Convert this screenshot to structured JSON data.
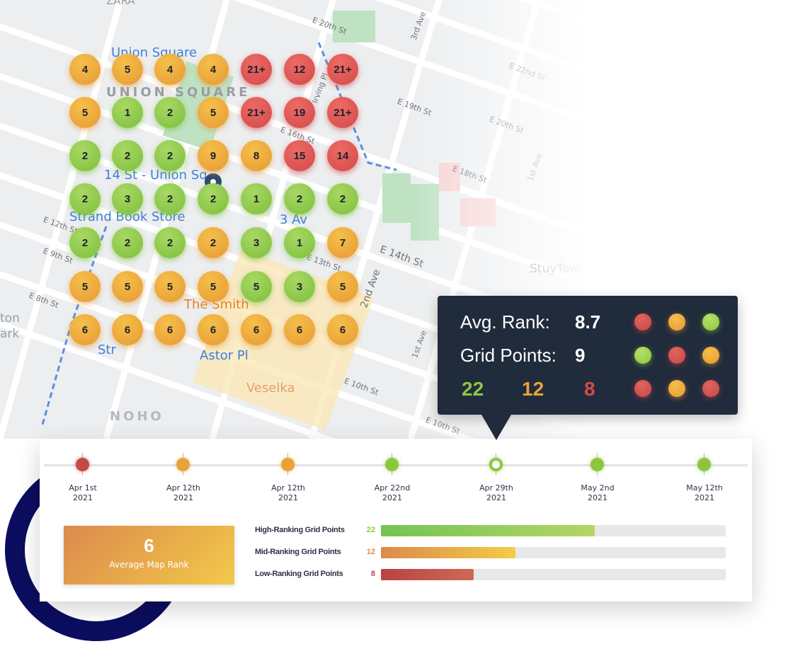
{
  "map": {
    "labels": [
      "ZARA",
      "Union Square",
      "UNION SQUARE",
      "14 St - Union Sq",
      "Strand Book Store",
      "3 Av",
      "The Smith",
      "Astor Pl",
      "Veselka",
      "NOHO",
      "StuyTown",
      "ton",
      "ark",
      "Str"
    ],
    "streets": [
      "E 20th St",
      "E 22nd St",
      "E 19th St",
      "E 20th St",
      "E 18th St",
      "1st Ave",
      "3rd Ave",
      "E 16th St",
      "Irving Pl",
      "E 14th St",
      "2nd Ave",
      "E 13th St",
      "E 9th St",
      "E 8th St",
      "1st Ave",
      "E 10th St",
      "E 10th St",
      "E 12th St"
    ],
    "grid": [
      [
        {
          "v": "4",
          "c": "o"
        },
        {
          "v": "5",
          "c": "o"
        },
        {
          "v": "4",
          "c": "o"
        },
        {
          "v": "4",
          "c": "o"
        },
        {
          "v": "21+",
          "c": "r"
        },
        {
          "v": "12",
          "c": "r"
        },
        {
          "v": "21+",
          "c": "r"
        }
      ],
      [
        {
          "v": "5",
          "c": "o"
        },
        {
          "v": "1",
          "c": "g"
        },
        {
          "v": "2",
          "c": "g"
        },
        {
          "v": "5",
          "c": "o"
        },
        {
          "v": "21+",
          "c": "r"
        },
        {
          "v": "19",
          "c": "r"
        },
        {
          "v": "21+",
          "c": "r"
        }
      ],
      [
        {
          "v": "2",
          "c": "g"
        },
        {
          "v": "2",
          "c": "g"
        },
        {
          "v": "2",
          "c": "g"
        },
        {
          "v": "9",
          "c": "o"
        },
        {
          "v": "8",
          "c": "o"
        },
        {
          "v": "15",
          "c": "r"
        },
        {
          "v": "14",
          "c": "r"
        }
      ],
      [
        {
          "v": "2",
          "c": "g"
        },
        {
          "v": "3",
          "c": "g"
        },
        {
          "v": "2",
          "c": "g"
        },
        {
          "v": "2",
          "c": "g"
        },
        {
          "v": "1",
          "c": "g"
        },
        {
          "v": "2",
          "c": "g"
        },
        {
          "v": "2",
          "c": "g"
        }
      ],
      [
        {
          "v": "2",
          "c": "g"
        },
        {
          "v": "2",
          "c": "g"
        },
        {
          "v": "2",
          "c": "g"
        },
        {
          "v": "2",
          "c": "o"
        },
        {
          "v": "3",
          "c": "g"
        },
        {
          "v": "1",
          "c": "g"
        },
        {
          "v": "7",
          "c": "o"
        }
      ],
      [
        {
          "v": "5",
          "c": "o"
        },
        {
          "v": "5",
          "c": "o"
        },
        {
          "v": "5",
          "c": "o"
        },
        {
          "v": "5",
          "c": "o"
        },
        {
          "v": "5",
          "c": "g"
        },
        {
          "v": "3",
          "c": "g"
        },
        {
          "v": "5",
          "c": "o"
        }
      ],
      [
        {
          "v": "6",
          "c": "o"
        },
        {
          "v": "6",
          "c": "o"
        },
        {
          "v": "6",
          "c": "o"
        },
        {
          "v": "6",
          "c": "o"
        },
        {
          "v": "6",
          "c": "o"
        },
        {
          "v": "6",
          "c": "o"
        },
        {
          "v": "6",
          "c": "o"
        }
      ]
    ]
  },
  "tooltip": {
    "avg_rank_label": "Avg. Rank:",
    "avg_rank_value": "8.7",
    "grid_points_label": "Grid Points:",
    "grid_points_value": "9",
    "high": "22",
    "mid": "12",
    "low": "8",
    "dots": [
      "r",
      "o",
      "g",
      "g",
      "r",
      "o",
      "r",
      "o",
      "r"
    ]
  },
  "timeline": [
    {
      "date": "Apr 1st",
      "year": "2021",
      "status": "r"
    },
    {
      "date": "Apr 12th",
      "year": "2021",
      "status": "o"
    },
    {
      "date": "Apr 12th",
      "year": "2021",
      "status": "o"
    },
    {
      "date": "Apr 22nd",
      "year": "2021",
      "status": "g"
    },
    {
      "date": "Apr 29th",
      "year": "2021",
      "status": "g",
      "selected": true
    },
    {
      "date": "May 2nd",
      "year": "2021",
      "status": "g"
    },
    {
      "date": "May 12th",
      "year": "2021",
      "status": "g"
    }
  ],
  "summary": {
    "average_rank": "6",
    "average_rank_label": "Average Map Rank",
    "bars": [
      {
        "label": "High-Ranking Grid Points",
        "count": "22",
        "fill_percent": 62,
        "color": "#8cc63f"
      },
      {
        "label": "Mid-Ranking Grid Points",
        "count": "12",
        "fill_percent": 39,
        "color": "#e08a4a"
      },
      {
        "label": "Low-Ranking Grid Points",
        "count": "8",
        "fill_percent": 27,
        "color": "#c34a47"
      }
    ]
  },
  "colors": {
    "green": "#8cc63f",
    "orange": "#e8a23a",
    "red": "#d34a48",
    "tooltip_bg": "#202b3c",
    "ring": "#0b0d5e"
  }
}
